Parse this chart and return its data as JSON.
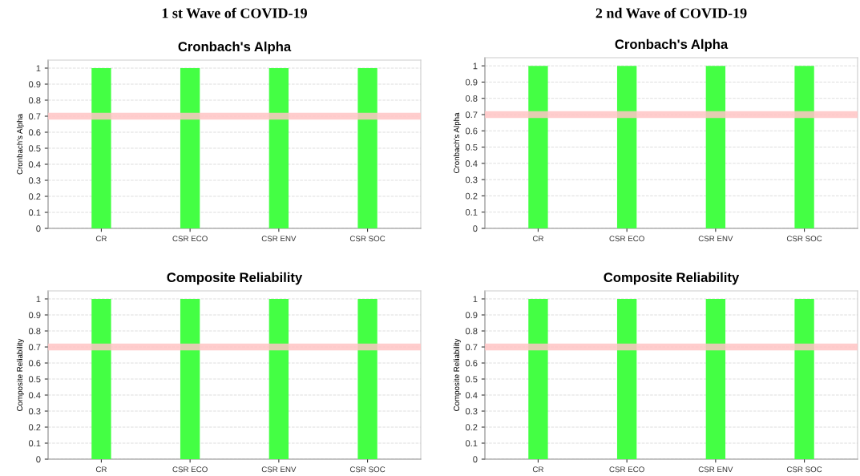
{
  "chart_data": [
    {
      "type": "bar",
      "title": "Cronbach's Alpha",
      "ylabel": "Cronbach's Alpha",
      "annotations": [
        "1 st Wave of COVID-19"
      ],
      "categories": [
        "CR",
        "CSR ECO",
        "CSR ENV",
        "CSR SOC"
      ],
      "values": [
        1,
        1,
        1,
        1
      ],
      "color": "#44ff44",
      "ylim": [
        0,
        1.05
      ],
      "yticks": [
        0,
        0.1,
        0.2,
        0.3,
        0.4,
        0.5,
        0.6,
        0.7,
        0.8,
        0.9,
        1
      ],
      "grid": "y",
      "ref_lines": [
        {
          "axis": "y",
          "value": 0.7,
          "color": "#ffc4c4"
        }
      ]
    },
    {
      "type": "bar",
      "title": "Cronbach's Alpha",
      "ylabel": "Cronbach's Alpha",
      "annotations": [
        "2 nd Wave of COVID-19"
      ],
      "categories": [
        "CR",
        "CSR ECO",
        "CSR ENV",
        "CSR SOC"
      ],
      "values": [
        1,
        1,
        1,
        1
      ],
      "color": "#44ff44",
      "ylim": [
        0,
        1.05
      ],
      "yticks": [
        0,
        0.1,
        0.2,
        0.3,
        0.4,
        0.5,
        0.6,
        0.7,
        0.8,
        0.9,
        1
      ],
      "grid": "y",
      "ref_lines": [
        {
          "axis": "y",
          "value": 0.7,
          "color": "#ffc4c4"
        }
      ]
    },
    {
      "type": "bar",
      "title": "Composite Reliability",
      "ylabel": "Composite Reliability",
      "categories": [
        "CR",
        "CSR ECO",
        "CSR ENV",
        "CSR SOC"
      ],
      "values": [
        1,
        1,
        1,
        1
      ],
      "color": "#44ff44",
      "ylim": [
        0,
        1.05
      ],
      "yticks": [
        0,
        0.1,
        0.2,
        0.3,
        0.4,
        0.5,
        0.6,
        0.7,
        0.8,
        0.9,
        1
      ],
      "grid": "y",
      "ref_lines": [
        {
          "axis": "y",
          "value": 0.7,
          "color": "#ffc4c4"
        }
      ]
    },
    {
      "type": "bar",
      "title": "Composite Reliability",
      "ylabel": "Composite Reliability",
      "categories": [
        "CR",
        "CSR ECO",
        "CSR ENV",
        "CSR SOC"
      ],
      "values": [
        1,
        1,
        1,
        1
      ],
      "color": "#44ff44",
      "ylim": [
        0,
        1.05
      ],
      "yticks": [
        0,
        0.1,
        0.2,
        0.3,
        0.4,
        0.5,
        0.6,
        0.7,
        0.8,
        0.9,
        1
      ],
      "grid": "y",
      "ref_lines": [
        {
          "axis": "y",
          "value": 0.7,
          "color": "#ffc4c4"
        }
      ]
    }
  ]
}
